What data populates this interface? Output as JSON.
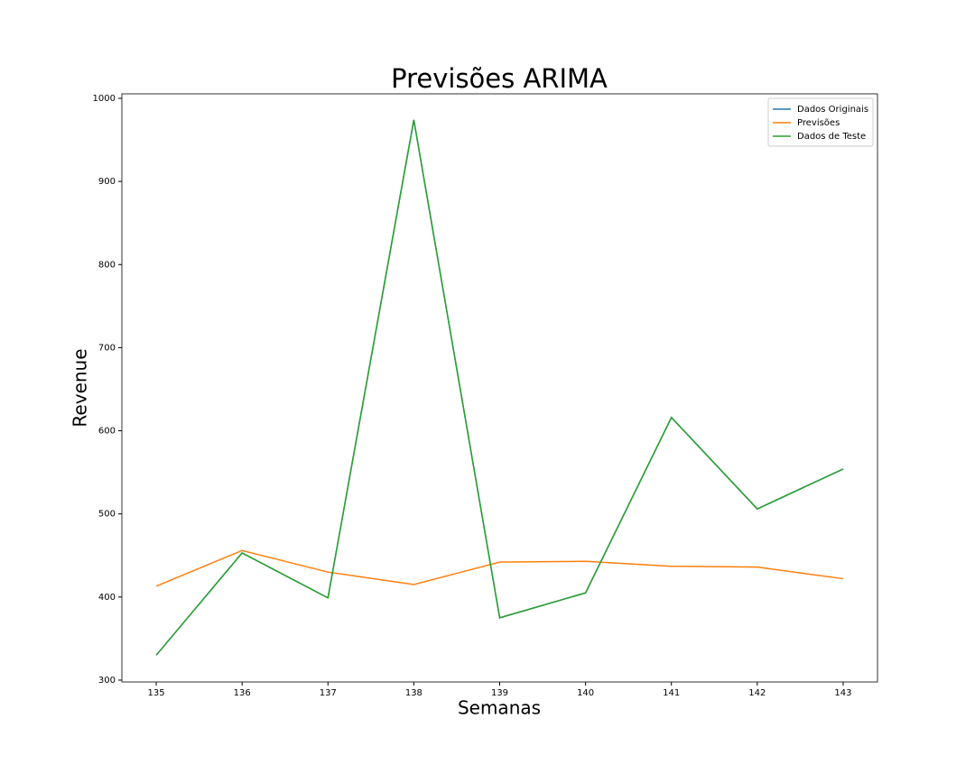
{
  "chart_data": {
    "type": "line",
    "title": "Previsões ARIMA",
    "xlabel": "Semanas",
    "ylabel": "Revenue",
    "x": [
      135,
      136,
      137,
      138,
      139,
      140,
      141,
      142,
      143
    ],
    "series": [
      {
        "name": "Dados Originais",
        "color": "#1f77b4",
        "values": [
          330,
          453,
          399,
          974,
          375,
          405,
          616,
          506,
          554
        ]
      },
      {
        "name": "Previsões",
        "color": "#ff7f0e",
        "values": [
          413,
          456,
          430,
          415,
          442,
          443,
          437,
          436,
          422
        ]
      },
      {
        "name": "Dados de Teste",
        "color": "#2ca02c",
        "values": [
          330,
          453,
          399,
          974,
          375,
          405,
          616,
          506,
          554
        ]
      }
    ],
    "xlim": [
      134.6,
      143.4
    ],
    "xticks": [
      135,
      136,
      137,
      138,
      139,
      140,
      141,
      142,
      143
    ],
    "ylim": [
      297.8,
      1005.4
    ],
    "yticks": [
      300,
      400,
      500,
      600,
      700,
      800,
      900,
      1000
    ],
    "grid": false,
    "legend": "upper right"
  }
}
